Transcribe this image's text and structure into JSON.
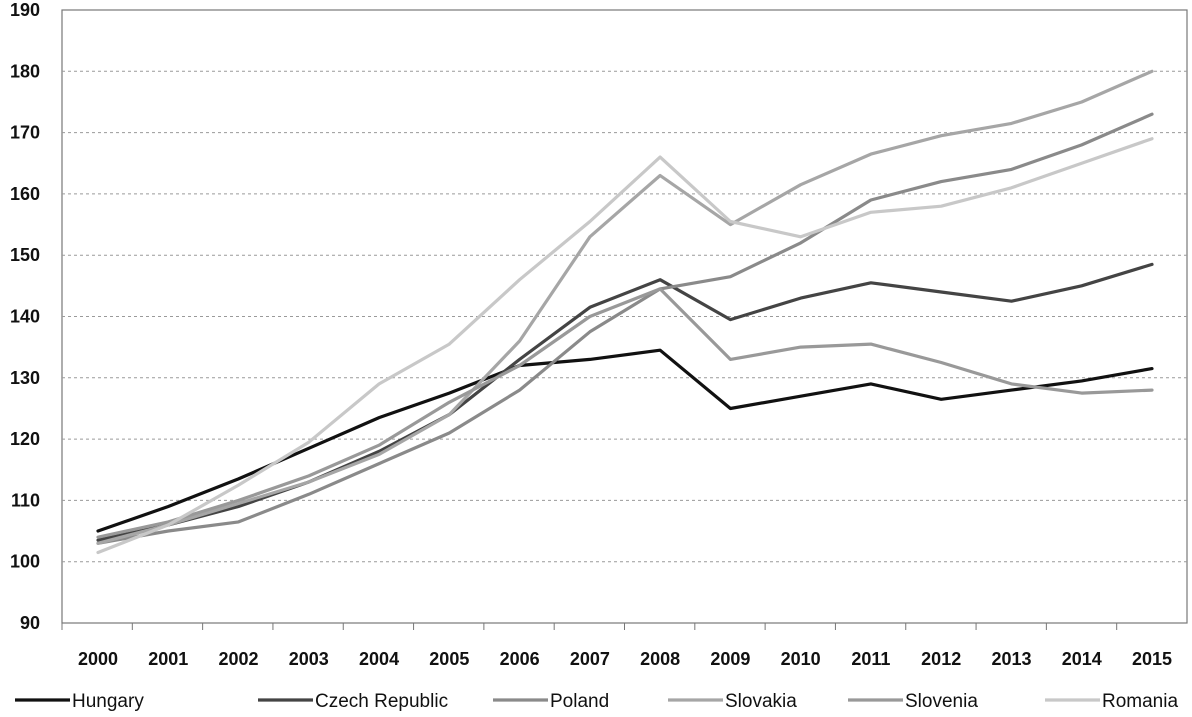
{
  "chart_data": {
    "type": "line",
    "title": "",
    "xlabel": "",
    "ylabel": "",
    "categories": [
      "2000",
      "2001",
      "2002",
      "2003",
      "2004",
      "2005",
      "2006",
      "2007",
      "2008",
      "2009",
      "2010",
      "2011",
      "2012",
      "2013",
      "2014",
      "2015"
    ],
    "ylim": [
      90,
      190
    ],
    "yticks": [
      90,
      100,
      110,
      120,
      130,
      140,
      150,
      160,
      170,
      180,
      190
    ],
    "grid": "horizontal dashed",
    "legend_position": "bottom",
    "series": [
      {
        "name": "Hungary",
        "color": "#111111",
        "values": [
          105.0,
          109.0,
          113.5,
          118.5,
          123.5,
          127.5,
          132.0,
          133.0,
          134.5,
          125.0,
          127.0,
          129.0,
          126.5,
          128.0,
          129.5,
          131.5
        ]
      },
      {
        "name": "Czech Republic",
        "color": "#444444",
        "values": [
          103.5,
          106.0,
          109.0,
          113.0,
          118.0,
          124.0,
          133.0,
          141.5,
          146.0,
          139.5,
          143.0,
          145.5,
          144.0,
          142.5,
          145.0,
          148.5
        ]
      },
      {
        "name": "Poland",
        "color": "#8a8a8a",
        "values": [
          103.0,
          105.0,
          106.5,
          111.0,
          116.0,
          121.0,
          128.0,
          137.5,
          144.5,
          146.5,
          152.0,
          159.0,
          162.0,
          164.0,
          168.0,
          173.0
        ]
      },
      {
        "name": "Slovakia",
        "color": "#a6a6a6",
        "values": [
          103.0,
          106.0,
          109.5,
          113.0,
          117.5,
          124.0,
          136.0,
          153.0,
          163.0,
          155.0,
          161.5,
          166.5,
          169.5,
          171.5,
          175.0,
          180.0
        ]
      },
      {
        "name": "Slovenia",
        "color": "#999999",
        "values": [
          104.0,
          106.5,
          110.0,
          114.0,
          119.0,
          126.0,
          132.0,
          140.0,
          144.5,
          133.0,
          135.0,
          135.5,
          132.5,
          129.0,
          127.5,
          128.0
        ]
      },
      {
        "name": "Romania",
        "color": "#c8c8c8",
        "values": [
          101.5,
          106.0,
          112.5,
          119.5,
          129.0,
          135.5,
          146.0,
          155.5,
          166.0,
          155.5,
          153.0,
          157.0,
          158.0,
          161.0,
          165.0,
          169.0
        ]
      }
    ]
  }
}
